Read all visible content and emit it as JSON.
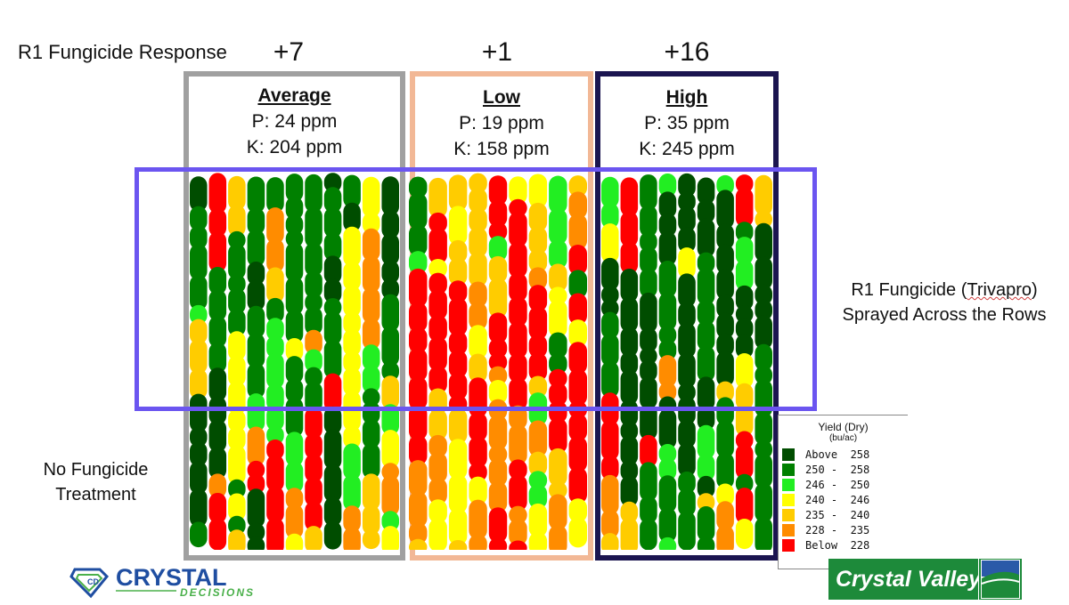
{
  "title": "R1 Fungicide Response",
  "responses": [
    "+7",
    "+1",
    "+16"
  ],
  "panels": [
    {
      "name": "Average",
      "p": "P: 24 ppm",
      "k": "K: 204 ppm",
      "frame_color": "#a0a0a0"
    },
    {
      "name": "Low",
      "p": "P: 19 ppm",
      "k": "K: 158 ppm",
      "frame_color": "#f2b896"
    },
    {
      "name": "High",
      "p": "P: 35 ppm",
      "k": "K: 245 ppm",
      "frame_color": "#1b1550"
    }
  ],
  "spray_label": {
    "line1_prefix": "R1 Fungicide (",
    "brand": "Trivapro",
    "line1_suffix": ")",
    "line2": "Sprayed Across the Rows"
  },
  "no_fungicide_label": {
    "line1": "No Fungicide",
    "line2": "Treatment"
  },
  "colors": {
    "spray_box": "#6b55f0"
  },
  "chart_data": {
    "type": "heatmap",
    "title": "R1 Fungicide Response",
    "legend": {
      "title": "Yield (Dry)",
      "unit": "(bu/ac)",
      "bins": [
        {
          "label": "Above  258",
          "color": "#004d00"
        },
        {
          "label": "250 -  258",
          "color": "#008000"
        },
        {
          "label": "246 -  250",
          "color": "#22ee22"
        },
        {
          "label": "240 -  246",
          "color": "#ffff00"
        },
        {
          "label": "235 -  240",
          "color": "#ffcc00"
        },
        {
          "label": "228 -  235",
          "color": "#ff8c00"
        },
        {
          "label": "Below  228",
          "color": "#ff0000"
        }
      ]
    },
    "series": [
      {
        "name": "Average",
        "response": "+7",
        "treated_distribution": [
          0.22,
          0.26,
          0.2,
          0.1,
          0.08,
          0.08,
          0.06
        ],
        "untreated_distribution": [
          0.05,
          0.1,
          0.1,
          0.2,
          0.2,
          0.2,
          0.15
        ]
      },
      {
        "name": "Low",
        "response": "+1",
        "treated_distribution": [
          0.0,
          0.02,
          0.08,
          0.15,
          0.25,
          0.15,
          0.35
        ],
        "untreated_distribution": [
          0.0,
          0.0,
          0.05,
          0.15,
          0.25,
          0.25,
          0.3
        ]
      },
      {
        "name": "High",
        "response": "+16",
        "treated_distribution": [
          0.65,
          0.15,
          0.05,
          0.03,
          0.04,
          0.04,
          0.04
        ],
        "untreated_distribution": [
          0.15,
          0.2,
          0.15,
          0.1,
          0.1,
          0.15,
          0.15
        ]
      }
    ]
  },
  "logos": {
    "crystal_decisions": {
      "word1": "CRYSTAL",
      "word2": "DECISIONS"
    },
    "crystal_valley": {
      "text": "Crystal Valley"
    }
  }
}
